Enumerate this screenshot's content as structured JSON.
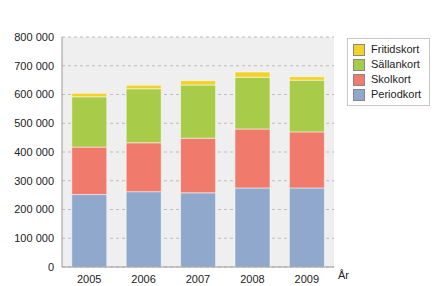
{
  "chart_data": {
    "type": "bar",
    "stacked": true,
    "grid": true,
    "legend": "top-right",
    "x_label": "År",
    "categories": [
      "2005",
      "2006",
      "2007",
      "2008",
      "2009"
    ],
    "ylim": [
      0,
      800000
    ],
    "yticks": [
      0,
      {
        "value": 100000,
        "label": "100 000"
      },
      {
        "value": 200000,
        "label": "200 000"
      },
      {
        "value": 300000,
        "label": "300 000"
      },
      {
        "value": 400000,
        "label": "400 000"
      },
      {
        "value": 500000,
        "label": "500 000"
      },
      {
        "value": 600000,
        "label": "600 000"
      },
      {
        "value": 700000,
        "label": "700 000"
      },
      {
        "value": 800000,
        "label": "800 000"
      }
    ],
    "series": [
      {
        "name": "Periodkort",
        "color": "#8fa8cc",
        "values": [
          252000,
          262000,
          258000,
          275000,
          275000
        ]
      },
      {
        "name": "Skolkort",
        "color": "#f07a6c",
        "values": [
          165000,
          170000,
          190000,
          205000,
          195000
        ]
      },
      {
        "name": "Sällankort",
        "color": "#a8cc4a",
        "values": [
          175000,
          188000,
          185000,
          180000,
          180000
        ]
      },
      {
        "name": "Fritidskort",
        "color": "#f2d22a",
        "values": [
          12000,
          12000,
          15000,
          18000,
          12000
        ]
      }
    ]
  }
}
